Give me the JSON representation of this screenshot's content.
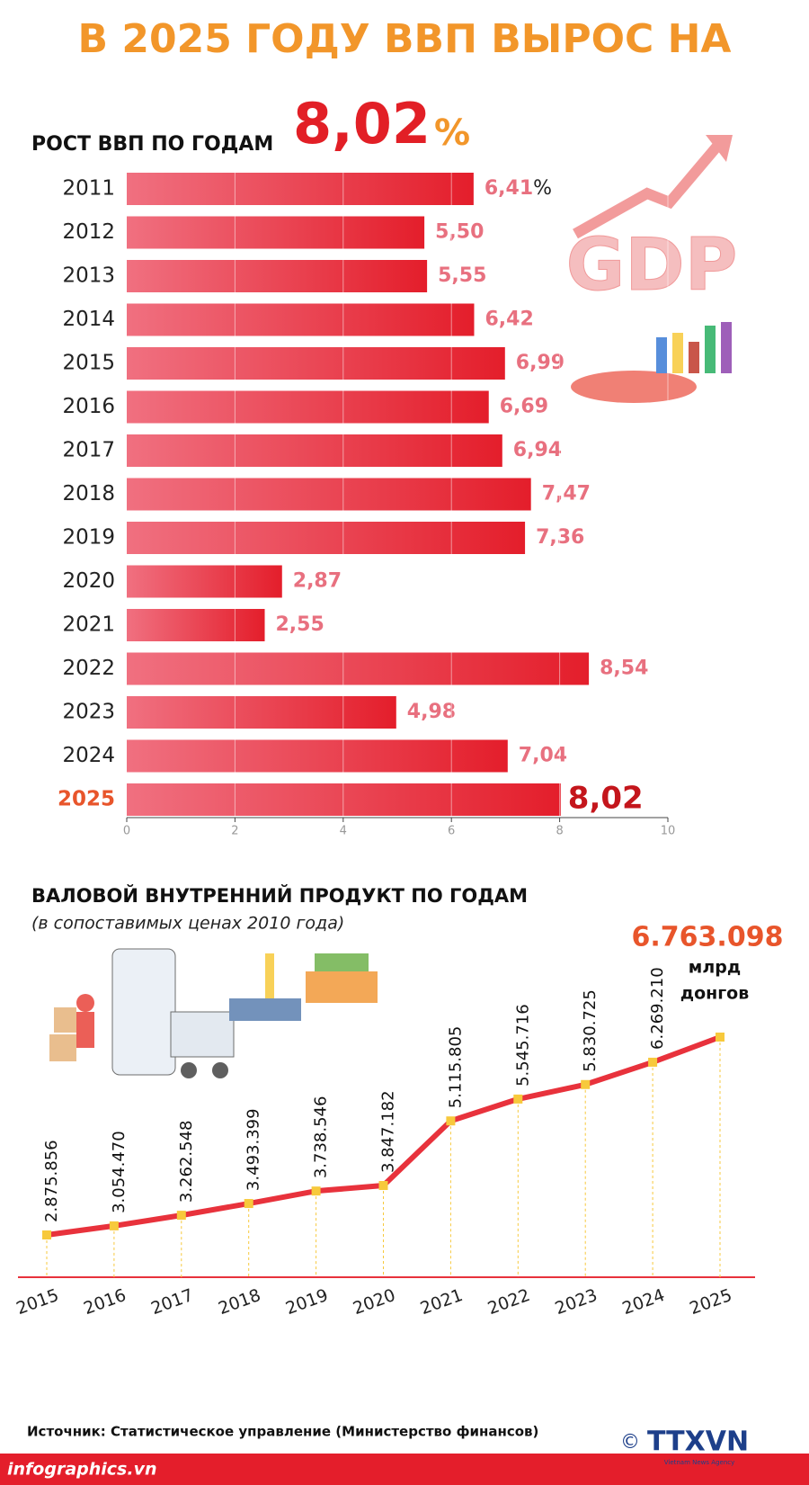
{
  "header": {
    "title": "В 2025 ГОДУ ВВП ВЫРОС НА",
    "headline_number": "8,02",
    "headline_unit": "%"
  },
  "chart_data": [
    {
      "type": "hbar",
      "title": "РОСТ ВВП ПО ГОДАМ",
      "categories": [
        "2011",
        "2012",
        "2013",
        "2014",
        "2015",
        "2016",
        "2017",
        "2018",
        "2019",
        "2020",
        "2021",
        "2022",
        "2023",
        "2024",
        "2025"
      ],
      "values": [
        6.41,
        5.5,
        5.55,
        6.42,
        6.99,
        6.69,
        6.94,
        7.47,
        7.36,
        2.87,
        2.55,
        8.54,
        4.98,
        7.04,
        8.02
      ],
      "value_labels": [
        "6,41",
        "5,50",
        "5,55",
        "6,42",
        "6,99",
        "6,69",
        "6,94",
        "7,47",
        "7,36",
        "2,87",
        "2,55",
        "8,54",
        "4,98",
        "7,04",
        "8,02"
      ],
      "value_label_unit": "%",
      "color": "#e8323c",
      "xlim": [
        0,
        10
      ],
      "xticks": [
        0,
        2,
        4,
        6,
        8,
        10
      ],
      "grid": true
    },
    {
      "type": "line",
      "title": "ВАЛОВОЙ ВНУТРЕННИЙ ПРОДУКТ ПО ГОДАМ",
      "subtitle": "(в сопоставимых ценах 2010 года)",
      "categories": [
        "2015",
        "2016",
        "2017",
        "2018",
        "2019",
        "2020",
        "2021",
        "2022",
        "2023",
        "2024",
        "2025"
      ],
      "values": [
        2875856,
        3054470,
        3262548,
        3493399,
        3738546,
        3847182,
        5115805,
        5545716,
        5830725,
        6269210,
        6763098
      ],
      "value_labels": [
        "2.875.856",
        "3.054.470",
        "3.262.548",
        "3.493.399",
        "3.738.546",
        "3.847.182",
        "5.115.805",
        "5.545.716",
        "5.830.725",
        "6.269.210",
        "6.763.098"
      ],
      "unit_lines": [
        "млрд",
        "донгов"
      ],
      "color": "#e8323c",
      "point_color": "#f7c93c"
    }
  ],
  "footer": {
    "source": "Источник: Статистическое управление (Министерство финансов)",
    "site": "infographics.vn",
    "logo": "TTXVN",
    "logo_sub": "Vietnam News Agency",
    "copyright": "©"
  }
}
